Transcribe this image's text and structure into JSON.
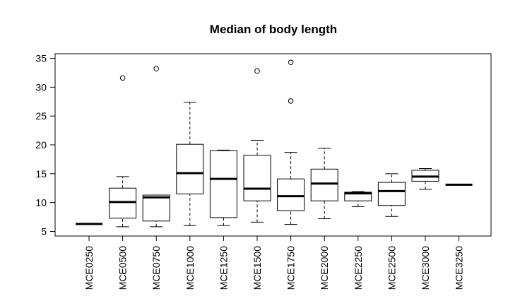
{
  "chart_data": {
    "type": "box",
    "title": "Median of body length",
    "xlabel": "",
    "ylabel": "",
    "ylim": [
      4.2,
      35.8
    ],
    "yticks": [
      5,
      10,
      15,
      20,
      25,
      30,
      35
    ],
    "grid": false,
    "categories": [
      "MCE0250",
      "MCE0500",
      "MCE0750",
      "MCE1000",
      "MCE1250",
      "MCE1500",
      "MCE1750",
      "MCE2000",
      "MCE2250",
      "MCE2500",
      "MCE3000",
      "MCE3250"
    ],
    "boxes": [
      {
        "whisker_low": 6.3,
        "q1": 6.3,
        "median": 6.3,
        "q3": 6.3,
        "whisker_high": 6.3,
        "outliers": []
      },
      {
        "whisker_low": 5.8,
        "q1": 7.3,
        "median": 10.1,
        "q3": 12.5,
        "whisker_high": 14.5,
        "outliers": [
          31.6
        ]
      },
      {
        "whisker_low": 5.8,
        "q1": 6.8,
        "median": 10.9,
        "q3": 11.3,
        "whisker_high": 11.3,
        "outliers": [
          33.2
        ]
      },
      {
        "whisker_low": 6.0,
        "q1": 11.5,
        "median": 15.1,
        "q3": 20.1,
        "whisker_high": 27.4,
        "outliers": []
      },
      {
        "whisker_low": 6.0,
        "q1": 7.4,
        "median": 14.1,
        "q3": 19.0,
        "whisker_high": 19.1,
        "outliers": []
      },
      {
        "whisker_low": 6.6,
        "q1": 10.3,
        "median": 12.4,
        "q3": 18.2,
        "whisker_high": 20.8,
        "outliers": [
          32.8
        ]
      },
      {
        "whisker_low": 6.2,
        "q1": 8.6,
        "median": 11.1,
        "q3": 14.1,
        "whisker_high": 18.7,
        "outliers": [
          27.6,
          34.3
        ]
      },
      {
        "whisker_low": 7.2,
        "q1": 10.3,
        "median": 13.3,
        "q3": 15.8,
        "whisker_high": 19.4,
        "outliers": []
      },
      {
        "whisker_low": 9.3,
        "q1": 10.3,
        "median": 11.6,
        "q3": 11.8,
        "whisker_high": 11.9,
        "outliers": []
      },
      {
        "whisker_low": 7.6,
        "q1": 9.5,
        "median": 12.0,
        "q3": 13.5,
        "whisker_high": 15.0,
        "outliers": []
      },
      {
        "whisker_low": 12.3,
        "q1": 13.7,
        "median": 14.5,
        "q3": 15.6,
        "whisker_high": 15.9,
        "outliers": []
      },
      {
        "whisker_low": 13.1,
        "q1": 13.1,
        "median": 13.1,
        "q3": 13.1,
        "whisker_high": 13.1,
        "outliers": []
      }
    ]
  }
}
